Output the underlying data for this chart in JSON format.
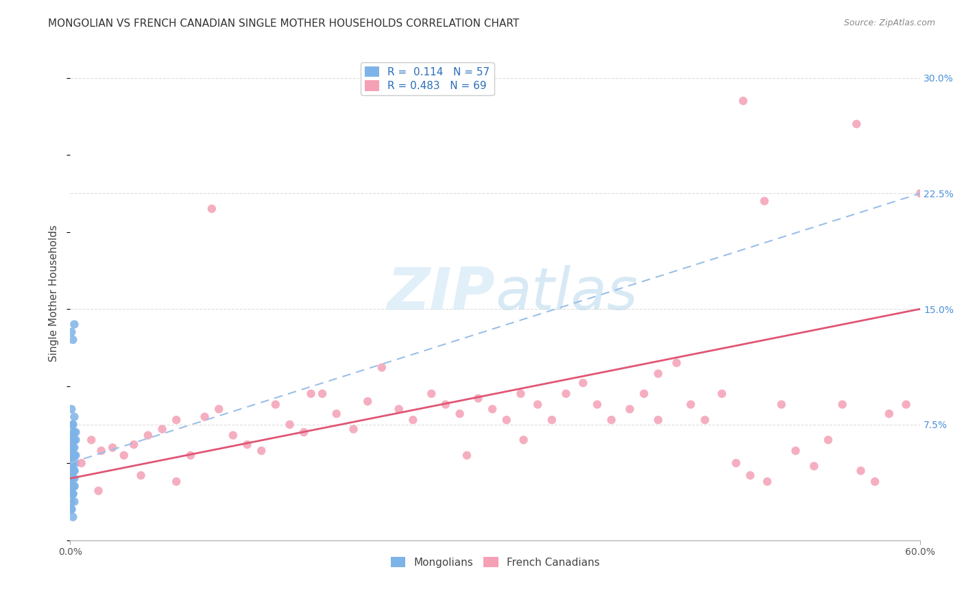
{
  "title": "MONGOLIAN VS FRENCH CANADIAN SINGLE MOTHER HOUSEHOLDS CORRELATION CHART",
  "source": "Source: ZipAtlas.com",
  "ylabel": "Single Mother Households",
  "xlim": [
    0,
    0.6
  ],
  "ylim": [
    0,
    0.32
  ],
  "xticks": [
    0.0,
    0.6
  ],
  "xticklabels": [
    "0.0%",
    "60.0%"
  ],
  "yticks": [
    0.0,
    0.075,
    0.15,
    0.225,
    0.3
  ],
  "yticklabels": [
    "",
    "7.5%",
    "15.0%",
    "22.5%",
    "30.0%"
  ],
  "mongolian_R": 0.114,
  "mongolian_N": 57,
  "french_R": 0.483,
  "french_N": 69,
  "mongolian_color": "#7eb3e8",
  "french_color": "#f4a0b5",
  "mongolian_line_color": "#9abfe8",
  "french_line_color": "#e05575",
  "background_color": "#ffffff",
  "grid_color": "#dddddd",
  "mongolian_line_start_y": 0.05,
  "mongolian_line_end_y": 0.225,
  "french_line_start_y": 0.04,
  "french_line_end_y": 0.15,
  "mongolians_x": [
    0.002,
    0.003,
    0.001,
    0.002,
    0.001,
    0.003,
    0.002,
    0.001,
    0.004,
    0.002,
    0.001,
    0.003,
    0.002,
    0.001,
    0.003,
    0.002,
    0.001,
    0.004,
    0.002,
    0.001,
    0.003,
    0.002,
    0.001,
    0.002,
    0.003,
    0.001,
    0.002,
    0.001,
    0.003,
    0.002,
    0.001,
    0.004,
    0.002,
    0.001,
    0.003,
    0.002,
    0.001,
    0.002,
    0.003,
    0.001,
    0.002,
    0.001,
    0.003,
    0.002,
    0.004,
    0.001,
    0.002,
    0.001,
    0.003,
    0.002,
    0.001,
    0.003,
    0.002,
    0.001,
    0.002,
    0.001,
    0.003
  ],
  "mongolians_y": [
    0.075,
    0.08,
    0.085,
    0.068,
    0.065,
    0.06,
    0.055,
    0.05,
    0.07,
    0.065,
    0.06,
    0.055,
    0.05,
    0.045,
    0.07,
    0.065,
    0.06,
    0.055,
    0.05,
    0.04,
    0.065,
    0.06,
    0.055,
    0.05,
    0.045,
    0.04,
    0.055,
    0.05,
    0.045,
    0.04,
    0.035,
    0.05,
    0.045,
    0.04,
    0.035,
    0.03,
    0.025,
    0.03,
    0.035,
    0.04,
    0.045,
    0.05,
    0.055,
    0.06,
    0.065,
    0.07,
    0.075,
    0.02,
    0.025,
    0.03,
    0.035,
    0.04,
    0.015,
    0.02,
    0.13,
    0.135,
    0.14
  ],
  "french_x": [
    0.008,
    0.015,
    0.022,
    0.03,
    0.038,
    0.045,
    0.055,
    0.065,
    0.075,
    0.085,
    0.095,
    0.105,
    0.115,
    0.125,
    0.135,
    0.145,
    0.155,
    0.165,
    0.178,
    0.188,
    0.2,
    0.21,
    0.22,
    0.232,
    0.242,
    0.255,
    0.265,
    0.275,
    0.288,
    0.298,
    0.308,
    0.318,
    0.33,
    0.34,
    0.35,
    0.362,
    0.372,
    0.382,
    0.395,
    0.405,
    0.415,
    0.428,
    0.438,
    0.448,
    0.46,
    0.47,
    0.48,
    0.492,
    0.502,
    0.512,
    0.525,
    0.535,
    0.545,
    0.558,
    0.568,
    0.578,
    0.59,
    0.17,
    0.28,
    0.32,
    0.415,
    0.1,
    0.02,
    0.05,
    0.075,
    0.6,
    0.475,
    0.555,
    0.49
  ],
  "french_y": [
    0.05,
    0.065,
    0.058,
    0.06,
    0.055,
    0.062,
    0.068,
    0.072,
    0.078,
    0.055,
    0.08,
    0.085,
    0.068,
    0.062,
    0.058,
    0.088,
    0.075,
    0.07,
    0.095,
    0.082,
    0.072,
    0.09,
    0.112,
    0.085,
    0.078,
    0.095,
    0.088,
    0.082,
    0.092,
    0.085,
    0.078,
    0.095,
    0.088,
    0.078,
    0.095,
    0.102,
    0.088,
    0.078,
    0.085,
    0.095,
    0.108,
    0.115,
    0.088,
    0.078,
    0.095,
    0.05,
    0.042,
    0.038,
    0.088,
    0.058,
    0.048,
    0.065,
    0.088,
    0.045,
    0.038,
    0.082,
    0.088,
    0.095,
    0.055,
    0.065,
    0.078,
    0.215,
    0.032,
    0.042,
    0.038,
    0.225,
    0.285,
    0.27,
    0.22
  ]
}
